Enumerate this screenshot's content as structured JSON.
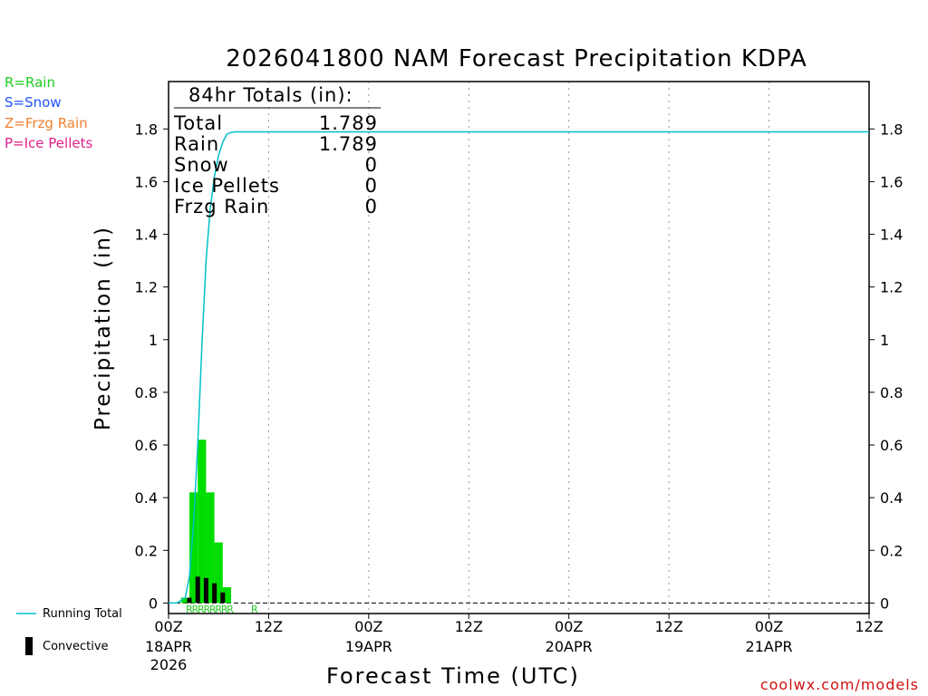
{
  "title": "2026041800 NAM Forecast Precipitation KDPA",
  "precip_legend": [
    {
      "label": "R=Rain",
      "color": "#22cc22"
    },
    {
      "label": "S=Snow",
      "color": "#2255ff"
    },
    {
      "label": "Z=Frzg Rain",
      "color": "#f08030"
    },
    {
      "label": "P=Ice Pellets",
      "color": "#e0208c"
    }
  ],
  "totals": {
    "header": "84hr Totals (in):",
    "rows": [
      {
        "label": "Total",
        "value": "1.789"
      },
      {
        "label": "Rain",
        "value": "1.789"
      },
      {
        "label": "Snow",
        "value": "0"
      },
      {
        "label": "Ice Pellets",
        "value": "0"
      },
      {
        "label": "Frzg Rain",
        "value": "0"
      }
    ]
  },
  "bottom_legend": {
    "running_total": "Running Total",
    "convective": "Convective"
  },
  "credit": "coolwx.com/models",
  "colors": {
    "rain_bar": "#00dd00",
    "convective_bar": "#000000",
    "running_total": "#00c0c8",
    "grid": "#999999",
    "credit": "#d01010"
  },
  "chart_data": {
    "type": "bar",
    "title": "2026041800 NAM Forecast Precipitation KDPA",
    "xlabel": "Forecast Time (UTC)",
    "ylabel": "Precipitation (in)",
    "xlim_hours": [
      0,
      84
    ],
    "ylim": [
      -0.04,
      1.98
    ],
    "yticks": [
      0,
      0.2,
      0.4,
      0.6,
      0.8,
      1,
      1.2,
      1.4,
      1.6,
      1.8
    ],
    "xticks": [
      {
        "hour": 0,
        "label": "00Z",
        "sub": [
          "18APR",
          "2026"
        ]
      },
      {
        "hour": 12,
        "label": "12Z",
        "sub": []
      },
      {
        "hour": 24,
        "label": "00Z",
        "sub": [
          "19APR"
        ]
      },
      {
        "hour": 36,
        "label": "12Z",
        "sub": []
      },
      {
        "hour": 48,
        "label": "00Z",
        "sub": [
          "20APR"
        ]
      },
      {
        "hour": 60,
        "label": "12Z",
        "sub": []
      },
      {
        "hour": 72,
        "label": "00Z",
        "sub": [
          "21APR"
        ]
      },
      {
        "hour": 84,
        "label": "12Z",
        "sub": []
      }
    ],
    "gridlines_hours": [
      12,
      24,
      36,
      48,
      60,
      72
    ],
    "series": [
      {
        "name": "Rain (3-hr)",
        "type": "bar",
        "hours": [
          2,
          3,
          4,
          5,
          6,
          7,
          8
        ],
        "values": [
          0.02,
          0.42,
          0.62,
          0.42,
          0.23,
          0.06,
          0.0
        ]
      },
      {
        "name": "Convective",
        "type": "bar",
        "hours": [
          2.5,
          3.5,
          4.5,
          5.5,
          6.5
        ],
        "values": [
          0.02,
          0.1,
          0.095,
          0.075,
          0.04
        ]
      },
      {
        "name": "Running Total",
        "type": "line",
        "hours": [
          0,
          1,
          2,
          2.5,
          3,
          3.5,
          4,
          4.5,
          5,
          5.5,
          6,
          6.5,
          7,
          7.5,
          8,
          9,
          10,
          12,
          84
        ],
        "values": [
          0,
          0,
          0.02,
          0.1,
          0.3,
          0.6,
          0.98,
          1.3,
          1.5,
          1.62,
          1.7,
          1.75,
          1.78,
          1.787,
          1.789,
          1.789,
          1.789,
          1.789,
          1.789
        ]
      }
    ],
    "ptype_markers": {
      "letters": [
        "R",
        "R",
        "R",
        "R",
        "R",
        "R",
        "R",
        "R",
        "R"
      ],
      "hours": [
        2.5,
        3.2,
        3.9,
        4.6,
        5.3,
        6.0,
        6.7,
        7.4,
        10.3
      ]
    }
  }
}
